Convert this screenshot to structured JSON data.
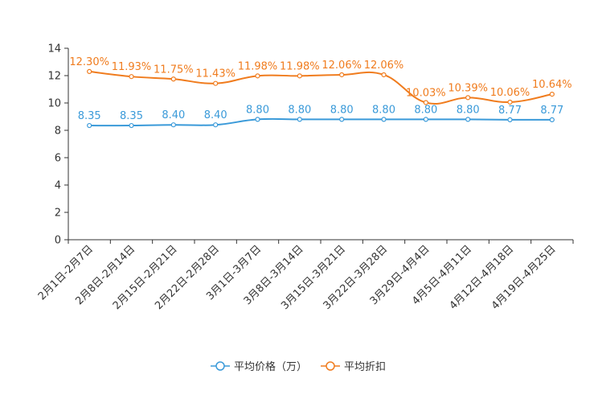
{
  "chart_data": {
    "type": "line",
    "categories": [
      "2月1日-2月7日",
      "2月8日-2月14日",
      "2月15日-2月21日",
      "2月22日-2月28日",
      "3月1日-3月7日",
      "3月8日-3月14日",
      "3月15日-3月21日",
      "3月22日-3月28日",
      "3月29日-4月4日",
      "4月5日-4月11日",
      "4月12日-4月18日",
      "4月19日-4月25日"
    ],
    "ylim": [
      0,
      14
    ],
    "yticks": [
      "0",
      "2",
      "4",
      "6",
      "8",
      "10",
      "12",
      "14"
    ],
    "series": [
      {
        "name": "平均价格（万）",
        "color": "#3a9ad9",
        "values": [
          8.35,
          8.35,
          8.4,
          8.4,
          8.8,
          8.8,
          8.8,
          8.8,
          8.8,
          8.8,
          8.77,
          8.77
        ],
        "labels": [
          "8.35",
          "8.35",
          "8.40",
          "8.40",
          "8.80",
          "8.80",
          "8.80",
          "8.80",
          "8.80",
          "8.80",
          "8.77",
          "8.77"
        ]
      },
      {
        "name": "平均折扣",
        "color": "#f07c1e",
        "values": [
          12.3,
          11.93,
          11.75,
          11.43,
          11.98,
          11.98,
          12.06,
          12.06,
          10.03,
          10.39,
          10.06,
          10.64
        ],
        "labels": [
          "12.30%",
          "11.93%",
          "11.75%",
          "11.43%",
          "11.98%",
          "11.98%",
          "12.06%",
          "12.06%",
          "10.03%",
          "10.39%",
          "10.06%",
          "10.64%"
        ]
      }
    ],
    "legend_position": "bottom-center"
  }
}
